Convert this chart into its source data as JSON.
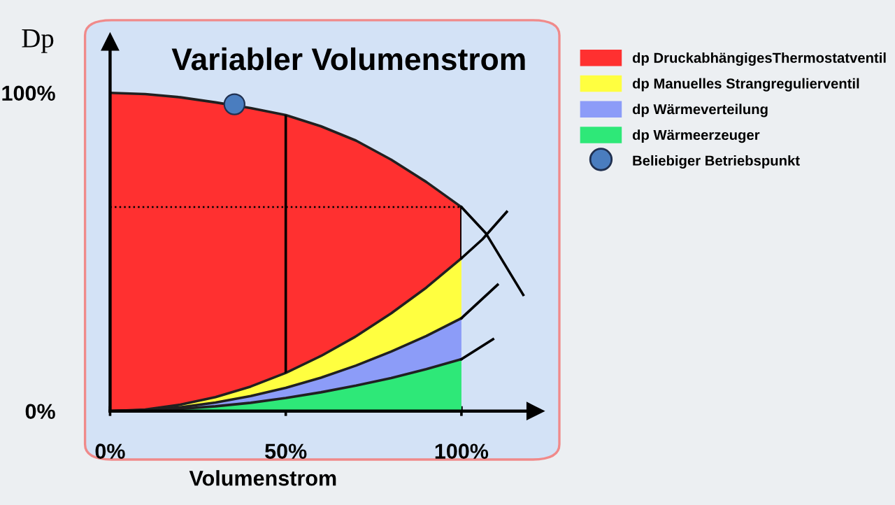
{
  "chart_data": {
    "type": "area",
    "stacked": true,
    "title": "Variabler Volumenstrom",
    "xlabel": "Volumenstrom",
    "ylabel": "Dp",
    "x": [
      0,
      10,
      20,
      30,
      40,
      50,
      60,
      70,
      80,
      90,
      100
    ],
    "xlim": [
      0,
      121
    ],
    "ylim": [
      0,
      116
    ],
    "xticks": [
      {
        "value": 0,
        "label": "0%"
      },
      {
        "value": 50,
        "label": "50%"
      },
      {
        "value": 100,
        "label": "100%"
      }
    ],
    "yticks": [
      {
        "value": 0,
        "label": "0%"
      },
      {
        "value": 100,
        "label": "100%"
      }
    ],
    "legend": "top right",
    "grid": false,
    "series": [
      {
        "name": "dp Wärmeerzeuger",
        "color": "#2ee878",
        "values": [
          0,
          0.2,
          0.7,
          1.5,
          2.6,
          4.1,
          5.9,
          8.0,
          10.4,
          13.2,
          16.3
        ]
      },
      {
        "name": "dp Wärmeverteilung",
        "color": "#8c9cf8",
        "values": [
          0,
          0.1,
          0.5,
          1.2,
          2.1,
          3.2,
          4.6,
          6.3,
          8.3,
          10.4,
          12.9
        ]
      },
      {
        "name": "dp Manuelles Strangregulierventil",
        "color": "#ffff40",
        "values": [
          0,
          0.2,
          0.8,
          1.7,
          3.0,
          4.7,
          6.8,
          9.2,
          12.0,
          15.2,
          18.8
        ]
      },
      {
        "name": "dp DruckabhängigesThermostatventil",
        "color": "#ff3030",
        "values": [
          100,
          99.1,
          96.6,
          92.6,
          87.5,
          81,
          72.2,
          61.5,
          48.3,
          33.2,
          16.1
        ]
      },
      {
        "type": "line",
        "color": "#000000",
        "x": [
          100,
          107,
          117.6
        ],
        "values": [
          64.1,
          55.8,
          36.5
        ]
      },
      {
        "type": "line",
        "color": "#000000",
        "x": [
          100,
          106,
          112.9
        ],
        "values": [
          48,
          54,
          62.6
        ]
      },
      {
        "type": "line",
        "color": "#000000",
        "x": [
          100,
          110.3
        ],
        "values": [
          29.2,
          39.7
        ]
      },
      {
        "type": "line",
        "color": "#000000",
        "x": [
          100,
          109
        ],
        "values": [
          16.3,
          22.6
        ]
      },
      {
        "type": "scatter",
        "name": "Beliebiger Betriebspunkt",
        "color": "#4a7dbf",
        "marker": "circle",
        "x": [
          35.4
        ],
        "values": [
          96.4
        ]
      }
    ],
    "ref_lines": [
      {
        "axis": "x",
        "value": 50,
        "color": "#000000",
        "line_style": "solid"
      },
      {
        "axis": "x",
        "value": 100,
        "color": "#000000",
        "line_style": "solid"
      },
      {
        "axis": "y",
        "value": 64.1,
        "color": "#000000",
        "line_style": "dotted"
      }
    ]
  }
}
